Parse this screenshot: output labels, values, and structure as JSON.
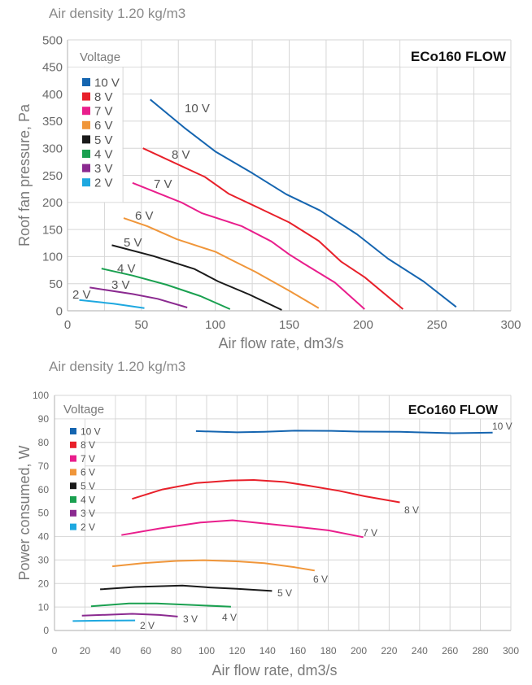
{
  "chart_data": [
    {
      "type": "line",
      "subtitle": "Air density 1.20 kg/m3",
      "title": "ECo160 FLOW",
      "xlabel": "Air flow rate, dm3/s",
      "ylabel": "Roof fan pressure, Pa",
      "xlim": [
        0,
        300
      ],
      "ylim": [
        0,
        500
      ],
      "xticks": [
        0,
        50,
        100,
        150,
        200,
        250,
        300
      ],
      "yticks": [
        0,
        50,
        100,
        150,
        200,
        250,
        300,
        350,
        400,
        450,
        500
      ],
      "grid": true,
      "legend_title": "Voltage",
      "legend_placement": "top-left",
      "series": [
        {
          "name": "10 V",
          "label": "10 V",
          "color": "#1565b0",
          "points": [
            [
              56,
              390
            ],
            [
              79,
              338
            ],
            [
              100,
              294
            ],
            [
              125,
              254
            ],
            [
              148,
              215
            ],
            [
              171,
              185
            ],
            [
              196,
              141
            ],
            [
              217,
              96
            ],
            [
              241,
              54
            ],
            [
              263,
              7
            ]
          ]
        },
        {
          "name": "8 V",
          "label": "8 V",
          "color": "#e8202a",
          "points": [
            [
              51,
              300
            ],
            [
              93,
              247
            ],
            [
              109,
              216
            ],
            [
              130,
              189
            ],
            [
              150,
              163
            ],
            [
              170,
              129
            ],
            [
              185,
              91
            ],
            [
              201,
              62
            ],
            [
              227,
              3
            ]
          ]
        },
        {
          "name": "7 V",
          "label": "7 V",
          "color": "#e91e8c",
          "points": [
            [
              44,
              236
            ],
            [
              77,
              200
            ],
            [
              91,
              180
            ],
            [
              118,
              156
            ],
            [
              138,
              128
            ],
            [
              150,
              104
            ],
            [
              160,
              87
            ],
            [
              181,
              52
            ],
            [
              201,
              3
            ]
          ]
        },
        {
          "name": "6 V",
          "label": "6 V",
          "color": "#f0963a",
          "points": [
            [
              38,
              171
            ],
            [
              54,
              156
            ],
            [
              74,
              132
            ],
            [
              100,
              109
            ],
            [
              113,
              91
            ],
            [
              127,
              72
            ],
            [
              150,
              37
            ],
            [
              170,
              5
            ]
          ]
        },
        {
          "name": "5 V",
          "label": "5 V",
          "color": "#1a1a1a",
          "points": [
            [
              30,
              121
            ],
            [
              58,
              101
            ],
            [
              86,
              77
            ],
            [
              102,
              54
            ],
            [
              123,
              30
            ],
            [
              145,
              1.5
            ]
          ]
        },
        {
          "name": "4 V",
          "label": "4 V",
          "color": "#1aa050",
          "points": [
            [
              23,
              78
            ],
            [
              44,
              65
            ],
            [
              67,
              48
            ],
            [
              90,
              27
            ],
            [
              110,
              3
            ]
          ]
        },
        {
          "name": "3 V",
          "label": "3 V",
          "color": "#8b2a90",
          "points": [
            [
              15,
              43
            ],
            [
              44,
              31
            ],
            [
              61,
              22
            ],
            [
              81,
              6
            ]
          ]
        },
        {
          "name": "2 V",
          "label": "2 V",
          "color": "#1ea8e0",
          "points": [
            [
              8,
              20
            ],
            [
              31,
              13
            ],
            [
              52,
              5
            ]
          ]
        }
      ]
    },
    {
      "type": "line",
      "subtitle": "Air density 1.20 kg/m3",
      "title": "ECo160 FLOW",
      "xlabel": "Air flow rate, dm3/s",
      "ylabel": "Power consumed, W",
      "xlim": [
        0,
        300
      ],
      "ylim": [
        0,
        100
      ],
      "xticks": [
        0,
        20,
        40,
        60,
        80,
        100,
        120,
        140,
        160,
        180,
        200,
        220,
        240,
        260,
        280,
        300
      ],
      "yticks": [
        0,
        10,
        20,
        30,
        40,
        50,
        60,
        70,
        80,
        90,
        100
      ],
      "grid": true,
      "legend_title": "Voltage",
      "legend_placement": "top-left",
      "series": [
        {
          "name": "10 V",
          "label": "10 V",
          "color": "#1565b0",
          "points": [
            [
              93,
              84.8
            ],
            [
              120,
              84.3
            ],
            [
              138,
              84.5
            ],
            [
              158,
              85
            ],
            [
              182,
              84.9
            ],
            [
              200,
              84.6
            ],
            [
              227,
              84.5
            ],
            [
              262,
              83.9
            ],
            [
              288,
              84.2
            ]
          ]
        },
        {
          "name": "8 V",
          "label": "8 V",
          "color": "#e8202a",
          "points": [
            [
              51,
              56
            ],
            [
              71,
              60
            ],
            [
              93,
              62.7
            ],
            [
              116,
              63.8
            ],
            [
              131,
              64
            ],
            [
              151,
              63.2
            ],
            [
              169,
              61.4
            ],
            [
              187,
              59.4
            ],
            [
              204,
              57.1
            ],
            [
              227,
              54.5
            ]
          ]
        },
        {
          "name": "7 V",
          "label": "7 V",
          "color": "#e91e8c",
          "points": [
            [
              44,
              40.6
            ],
            [
              69,
              43.4
            ],
            [
              96,
              45.9
            ],
            [
              117,
              46.9
            ],
            [
              138,
              45.5
            ],
            [
              160,
              44
            ],
            [
              180,
              42.6
            ],
            [
              203,
              39.7
            ]
          ]
        },
        {
          "name": "6 V",
          "label": "6 V",
          "color": "#f0963a",
          "points": [
            [
              38,
              27.3
            ],
            [
              58,
              28.6
            ],
            [
              80,
              29.6
            ],
            [
              98,
              29.9
            ],
            [
              120,
              29.4
            ],
            [
              138,
              28.6
            ],
            [
              158,
              26.9
            ],
            [
              171,
              25.5
            ]
          ]
        },
        {
          "name": "5 V",
          "label": "5 V",
          "color": "#1a1a1a",
          "points": [
            [
              30,
              17.5
            ],
            [
              53,
              18.5
            ],
            [
              84,
              19.1
            ],
            [
              102,
              18.3
            ],
            [
              120,
              17.7
            ],
            [
              143,
              16.8
            ]
          ]
        },
        {
          "name": "4 V",
          "label": "4 V",
          "color": "#1aa050",
          "points": [
            [
              24,
              10.3
            ],
            [
              49,
              11.5
            ],
            [
              67,
              11.5
            ],
            [
              89,
              10.9
            ],
            [
              116,
              10.1
            ]
          ]
        },
        {
          "name": "3 V",
          "label": "3 V",
          "color": "#8b2a90",
          "points": [
            [
              18,
              6.3
            ],
            [
              51,
              7.1
            ],
            [
              69,
              6.6
            ],
            [
              81,
              5.9
            ]
          ]
        },
        {
          "name": "2 V",
          "label": "2 V",
          "color": "#1ea8e0",
          "points": [
            [
              12,
              4
            ],
            [
              31,
              4.2
            ],
            [
              53,
              4.3
            ]
          ]
        }
      ]
    }
  ]
}
